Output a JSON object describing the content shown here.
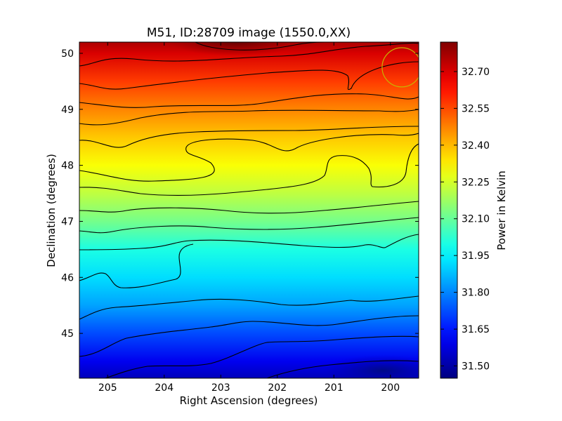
{
  "chart_data": {
    "type": "heatmap",
    "title": "M51, ID:28709 image (1550.0,XX)",
    "xlabel": "Right Ascension (degrees)",
    "ylabel": "Declination (degrees)",
    "xlim": [
      205.5,
      199.5
    ],
    "ylim": [
      44.2,
      50.2
    ],
    "x_ticks": [
      205,
      204,
      203,
      202,
      201,
      200
    ],
    "y_ticks": [
      45,
      46,
      47,
      48,
      49,
      50
    ],
    "colorbar": {
      "label": "Power in Kelvin",
      "colormap": "jet",
      "range": [
        31.45,
        32.82
      ],
      "ticks": [
        31.5,
        31.65,
        31.8,
        31.95,
        32.1,
        32.25,
        32.4,
        32.55,
        32.7
      ],
      "tick_labels": [
        "31.50",
        "31.65",
        "31.80",
        "31.95",
        "32.10",
        "32.25",
        "32.40",
        "32.55",
        "32.70"
      ]
    },
    "gradient_profile": {
      "dec": [
        44.2,
        44.5,
        45.0,
        45.5,
        46.0,
        46.5,
        47.0,
        47.5,
        48.0,
        48.5,
        49.0,
        49.5,
        50.0,
        50.2
      ],
      "power": [
        31.53,
        31.6,
        31.72,
        31.84,
        31.92,
        32.0,
        32.12,
        32.22,
        32.3,
        32.38,
        32.47,
        32.57,
        32.7,
        32.76
      ]
    },
    "beam_marker": {
      "ra": 199.8,
      "dec": 49.75,
      "radius_deg": 0.35,
      "color": "#c8b400"
    },
    "contour_color": "#000000"
  }
}
